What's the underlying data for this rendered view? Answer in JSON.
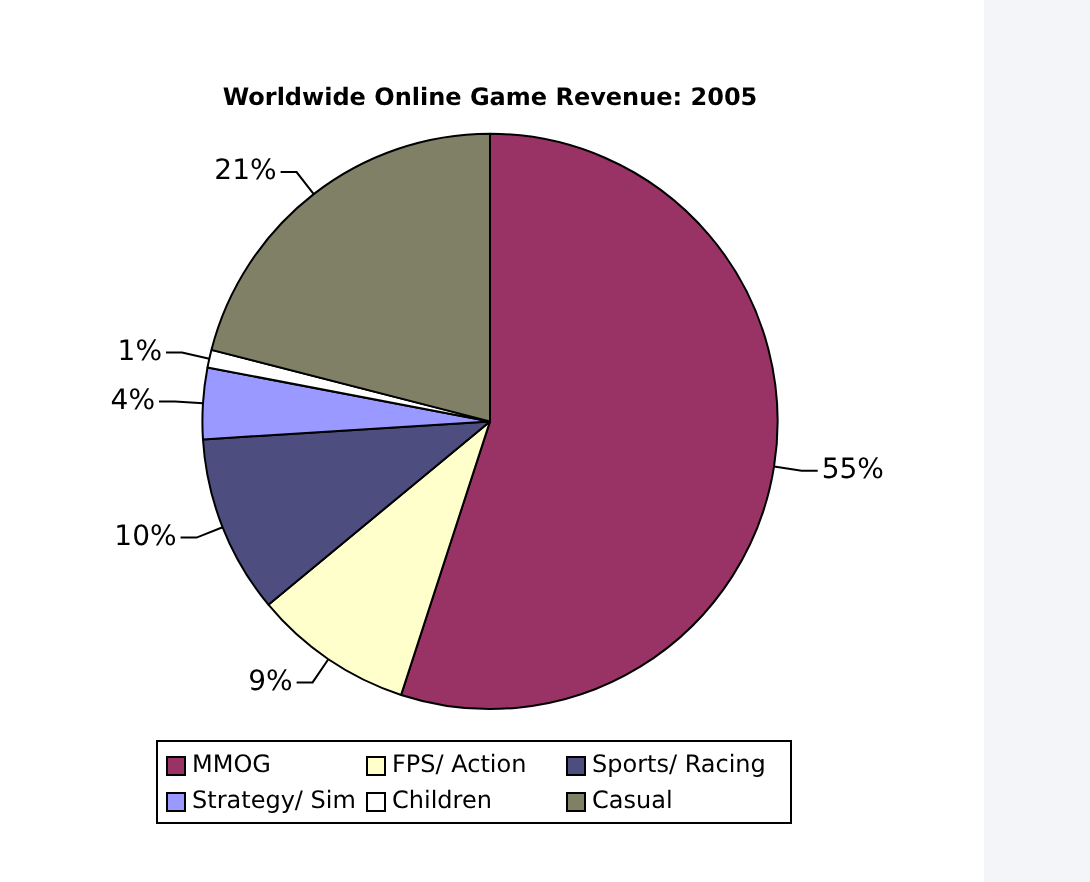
{
  "chart_data": {
    "type": "pie",
    "title": "Worldwide Online Game Revenue: 2005",
    "categories": [
      "MMOG",
      "FPS/ Action",
      "Sports/ Racing",
      "Strategy/ Sim",
      "Children",
      "Casual"
    ],
    "values": [
      55,
      9,
      10,
      4,
      1,
      21
    ],
    "colors": [
      "#993366",
      "#ffffcc",
      "#4d4d80",
      "#9999ff",
      "#ffffff",
      "#808066"
    ],
    "value_labels": [
      "55%",
      "9%",
      "10%",
      "4%",
      "1%",
      "21%"
    ],
    "legend": "bottom"
  }
}
